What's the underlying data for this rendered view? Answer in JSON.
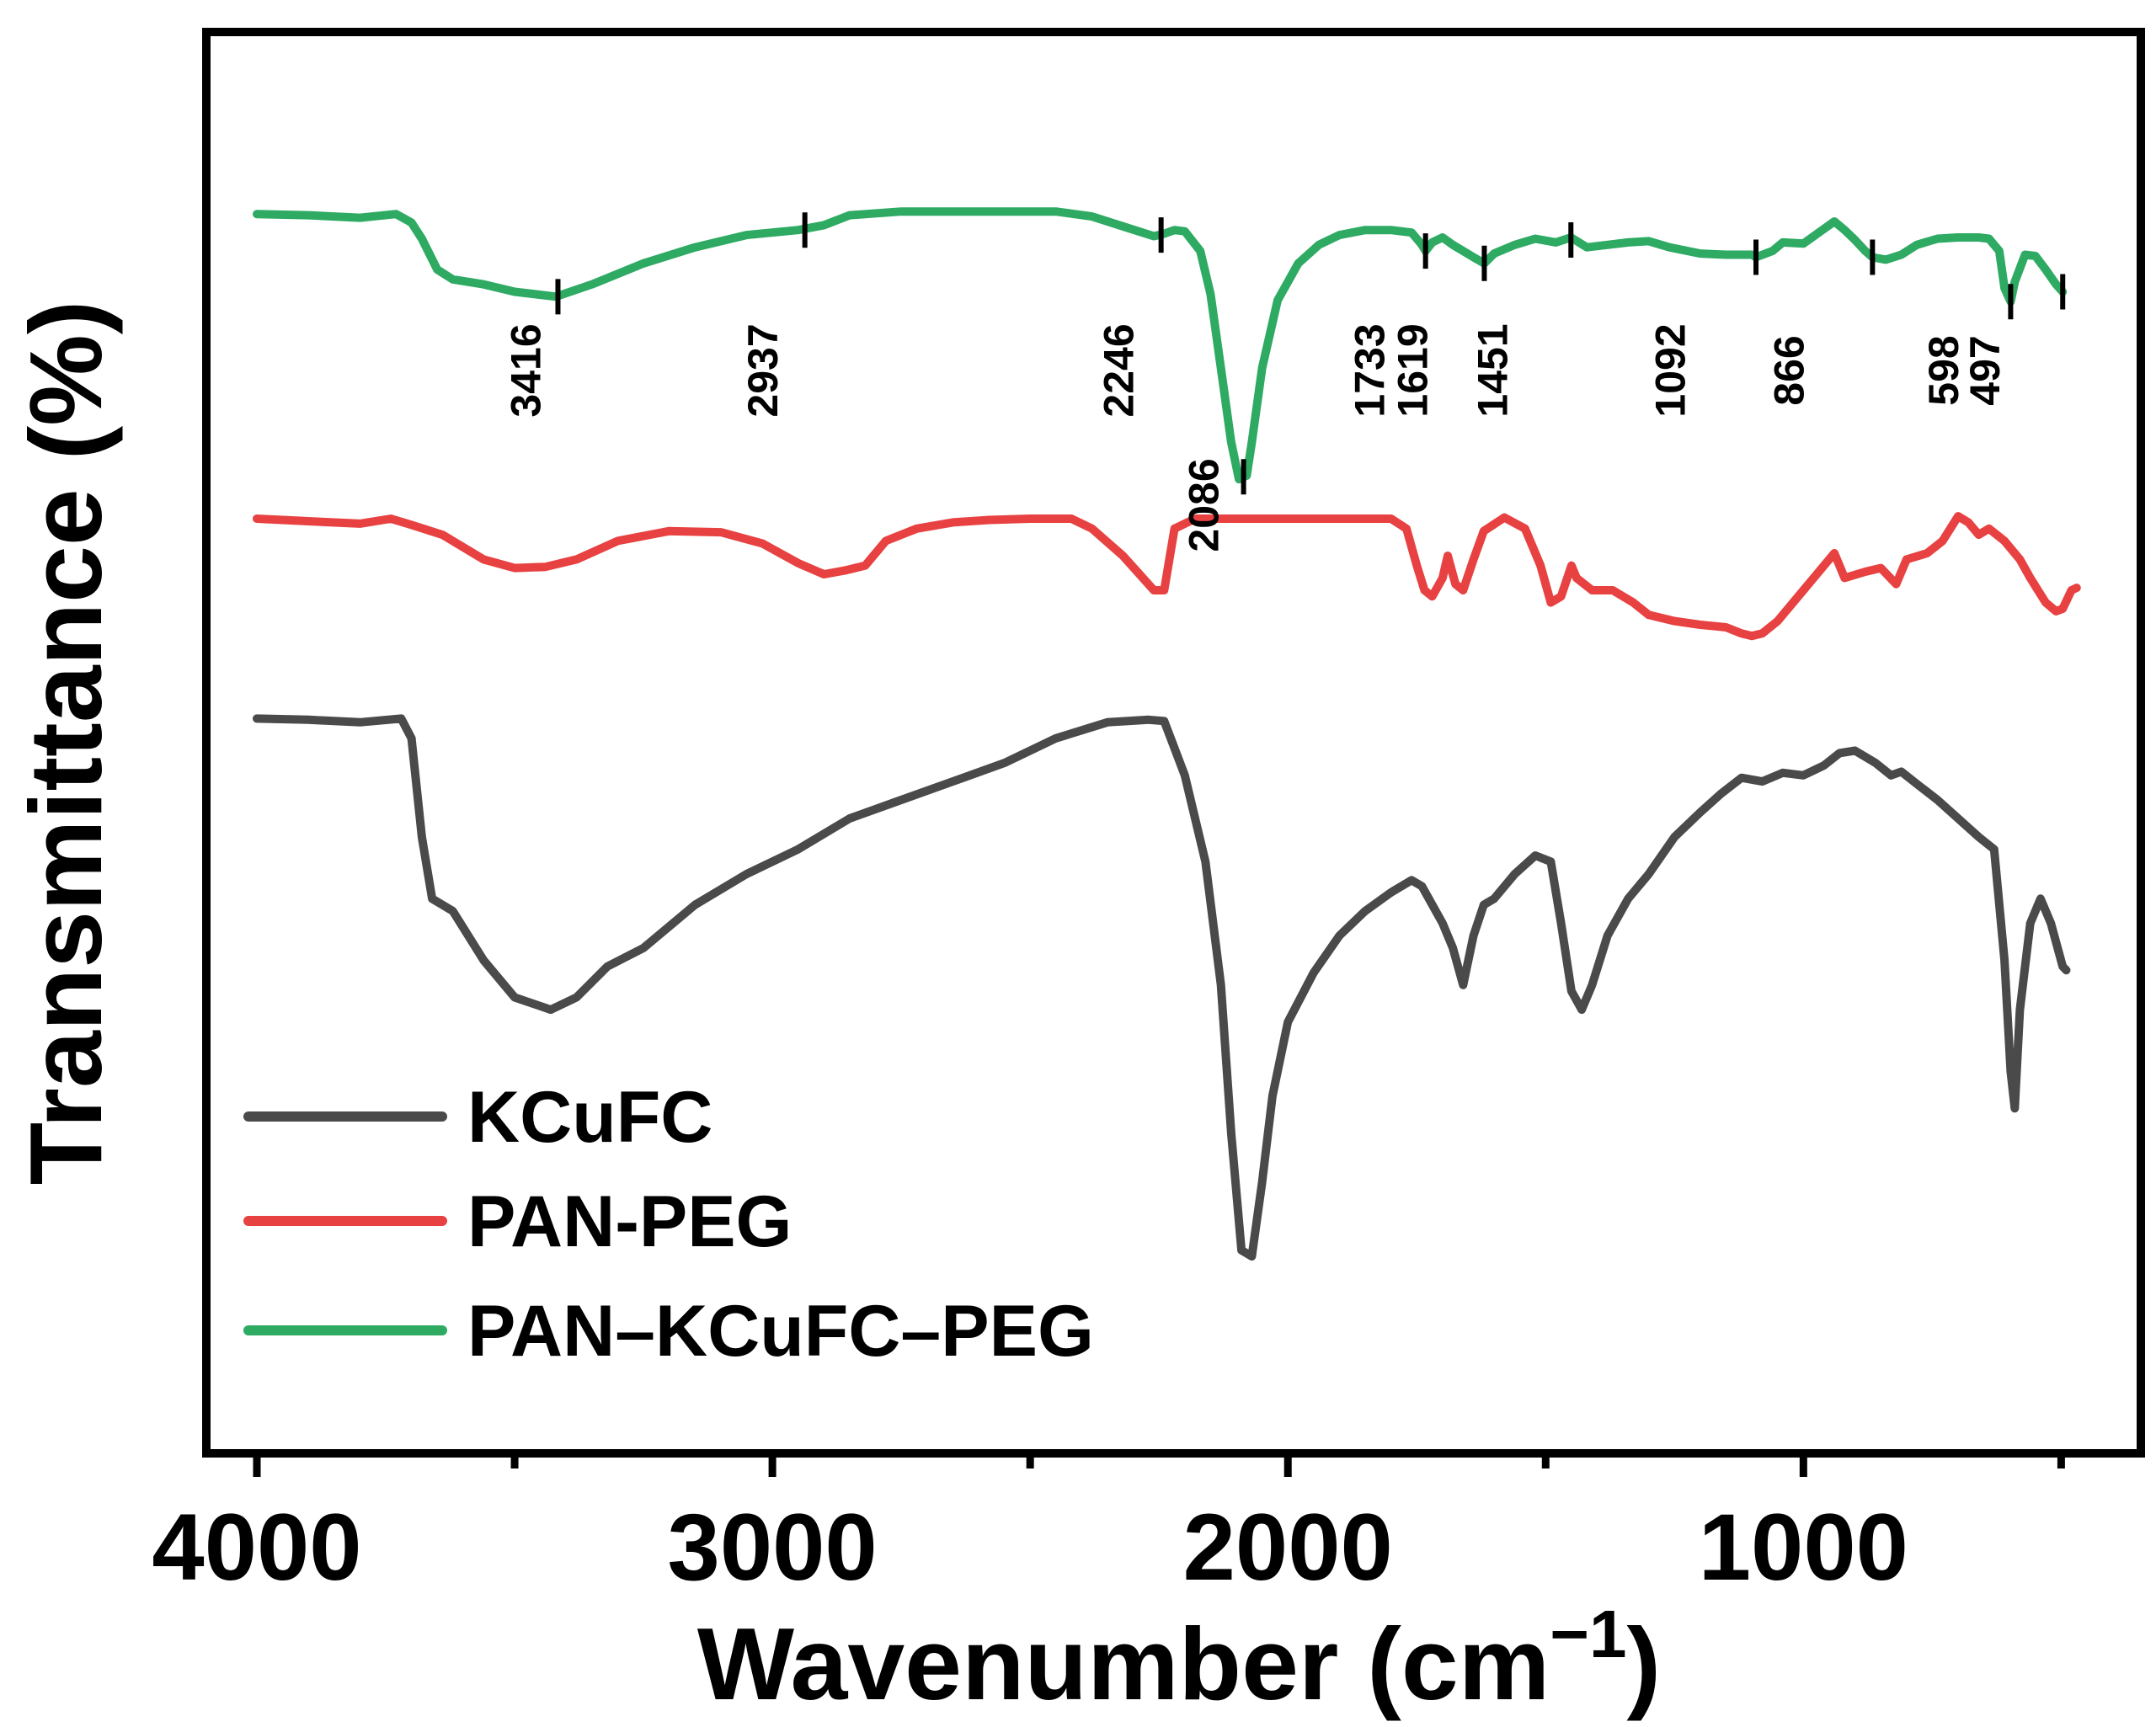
{
  "chart_data": {
    "type": "line",
    "title": "",
    "xlabel": "Wavenumber (cm",
    "xlabel_sup": "−1",
    "xlabel_close": ")",
    "ylabel": "Transmittance (%)",
    "xlim": [
      4000,
      450
    ],
    "ylim": [
      0,
      100
    ],
    "x_reversed": true,
    "y_ticks_shown": false,
    "grid": false,
    "legend_position": "bottom-left",
    "x_ticks": [
      {
        "value": 4000,
        "label": "4000"
      },
      {
        "value": 3000,
        "label": "3000"
      },
      {
        "value": 2000,
        "label": "2000"
      },
      {
        "value": 1000,
        "label": "1000"
      }
    ],
    "x_minor_ticks": [
      3500,
      2500,
      1500,
      500
    ],
    "series": [
      {
        "name": "KCuFC",
        "color": "#4a4a4a",
        "points": [
          [
            4000,
            49.6
          ],
          [
            3900,
            49.5
          ],
          [
            3800,
            49.3
          ],
          [
            3720,
            49.6
          ],
          [
            3700,
            48
          ],
          [
            3680,
            40
          ],
          [
            3660,
            35
          ],
          [
            3620,
            34
          ],
          [
            3560,
            30
          ],
          [
            3500,
            27
          ],
          [
            3430,
            26
          ],
          [
            3380,
            27
          ],
          [
            3320,
            29.5
          ],
          [
            3250,
            31
          ],
          [
            3150,
            34.5
          ],
          [
            3050,
            37
          ],
          [
            2950,
            39
          ],
          [
            2850,
            41.5
          ],
          [
            2750,
            43
          ],
          [
            2650,
            44.5
          ],
          [
            2550,
            46
          ],
          [
            2450,
            48
          ],
          [
            2350,
            49.3
          ],
          [
            2270,
            49.5
          ],
          [
            2240,
            49.4
          ],
          [
            2200,
            45
          ],
          [
            2160,
            38
          ],
          [
            2130,
            28
          ],
          [
            2110,
            16
          ],
          [
            2090,
            6.5
          ],
          [
            2070,
            6
          ],
          [
            2050,
            12
          ],
          [
            2030,
            19
          ],
          [
            2000,
            25
          ],
          [
            1950,
            29
          ],
          [
            1900,
            32
          ],
          [
            1850,
            34
          ],
          [
            1800,
            35.5
          ],
          [
            1760,
            36.5
          ],
          [
            1740,
            36
          ],
          [
            1700,
            33
          ],
          [
            1680,
            31
          ],
          [
            1660,
            28
          ],
          [
            1640,
            32
          ],
          [
            1620,
            34.5
          ],
          [
            1600,
            35
          ],
          [
            1560,
            37
          ],
          [
            1520,
            38.5
          ],
          [
            1490,
            38
          ],
          [
            1470,
            33
          ],
          [
            1450,
            27.5
          ],
          [
            1430,
            26
          ],
          [
            1410,
            28
          ],
          [
            1380,
            32
          ],
          [
            1340,
            35
          ],
          [
            1300,
            37
          ],
          [
            1250,
            40
          ],
          [
            1200,
            42
          ],
          [
            1160,
            43.5
          ],
          [
            1120,
            44.8
          ],
          [
            1080,
            44.5
          ],
          [
            1040,
            45.2
          ],
          [
            1000,
            45
          ],
          [
            960,
            45.8
          ],
          [
            930,
            46.8
          ],
          [
            900,
            47
          ],
          [
            860,
            46
          ],
          [
            830,
            45
          ],
          [
            810,
            45.3
          ],
          [
            780,
            44.3
          ],
          [
            740,
            43
          ],
          [
            700,
            41.5
          ],
          [
            660,
            40
          ],
          [
            630,
            39
          ],
          [
            610,
            30
          ],
          [
            598,
            21
          ],
          [
            590,
            18
          ],
          [
            580,
            26
          ],
          [
            560,
            33
          ],
          [
            540,
            35
          ],
          [
            520,
            33
          ],
          [
            497,
            29.5
          ],
          [
            490,
            29.2
          ]
        ]
      },
      {
        "name": "PAN-PEG",
        "color": "#e84141",
        "points": [
          [
            4000,
            65.8
          ],
          [
            3900,
            65.6
          ],
          [
            3800,
            65.4
          ],
          [
            3740,
            65.8
          ],
          [
            3700,
            65.3
          ],
          [
            3640,
            64.5
          ],
          [
            3560,
            62.5
          ],
          [
            3500,
            61.8
          ],
          [
            3440,
            61.9
          ],
          [
            3380,
            62.5
          ],
          [
            3300,
            64
          ],
          [
            3200,
            64.8
          ],
          [
            3100,
            64.7
          ],
          [
            3020,
            63.8
          ],
          [
            2950,
            62.2
          ],
          [
            2900,
            61.3
          ],
          [
            2860,
            61.6
          ],
          [
            2820,
            62
          ],
          [
            2780,
            64
          ],
          [
            2720,
            65
          ],
          [
            2650,
            65.5
          ],
          [
            2580,
            65.7
          ],
          [
            2500,
            65.8
          ],
          [
            2420,
            65.8
          ],
          [
            2380,
            65
          ],
          [
            2320,
            62.8
          ],
          [
            2260,
            60
          ],
          [
            2240,
            60
          ],
          [
            2220,
            65
          ],
          [
            2180,
            65.8
          ],
          [
            2100,
            65.8
          ],
          [
            2000,
            65.8
          ],
          [
            1900,
            65.8
          ],
          [
            1800,
            65.8
          ],
          [
            1770,
            65
          ],
          [
            1750,
            62
          ],
          [
            1735,
            60
          ],
          [
            1720,
            59.5
          ],
          [
            1700,
            61
          ],
          [
            1690,
            62.8
          ],
          [
            1675,
            60.5
          ],
          [
            1660,
            60
          ],
          [
            1640,
            62.5
          ],
          [
            1620,
            64.8
          ],
          [
            1580,
            65.9
          ],
          [
            1540,
            65
          ],
          [
            1510,
            62
          ],
          [
            1490,
            59
          ],
          [
            1470,
            59.5
          ],
          [
            1450,
            62
          ],
          [
            1440,
            61
          ],
          [
            1410,
            60
          ],
          [
            1370,
            60
          ],
          [
            1330,
            59
          ],
          [
            1300,
            58
          ],
          [
            1250,
            57.5
          ],
          [
            1200,
            57.2
          ],
          [
            1150,
            57
          ],
          [
            1120,
            56.5
          ],
          [
            1100,
            56.3
          ],
          [
            1080,
            56.5
          ],
          [
            1050,
            57.5
          ],
          [
            1000,
            60
          ],
          [
            960,
            62
          ],
          [
            940,
            63
          ],
          [
            920,
            61
          ],
          [
            880,
            61.5
          ],
          [
            850,
            61.8
          ],
          [
            820,
            60.5
          ],
          [
            800,
            62.5
          ],
          [
            760,
            63
          ],
          [
            730,
            64
          ],
          [
            700,
            66
          ],
          [
            680,
            65.5
          ],
          [
            660,
            64.5
          ],
          [
            640,
            65
          ],
          [
            610,
            64
          ],
          [
            580,
            62.5
          ],
          [
            560,
            61
          ],
          [
            530,
            59
          ],
          [
            510,
            58.3
          ],
          [
            497,
            58.5
          ],
          [
            480,
            60
          ],
          [
            470,
            60.2
          ]
        ]
      },
      {
        "name": "PAN–KCuFC–PEG",
        "color": "#2eaa63",
        "points": [
          [
            4000,
            90.5
          ],
          [
            3900,
            90.4
          ],
          [
            3800,
            90.2
          ],
          [
            3730,
            90.5
          ],
          [
            3700,
            89.8
          ],
          [
            3680,
            88.5
          ],
          [
            3650,
            86
          ],
          [
            3620,
            85.2
          ],
          [
            3560,
            84.8
          ],
          [
            3500,
            84.2
          ],
          [
            3420,
            83.8
          ],
          [
            3350,
            84.8
          ],
          [
            3250,
            86.5
          ],
          [
            3150,
            87.8
          ],
          [
            3050,
            88.8
          ],
          [
            2950,
            89.2
          ],
          [
            2900,
            89.6
          ],
          [
            2850,
            90.4
          ],
          [
            2750,
            90.7
          ],
          [
            2650,
            90.7
          ],
          [
            2550,
            90.7
          ],
          [
            2450,
            90.7
          ],
          [
            2380,
            90.3
          ],
          [
            2320,
            89.5
          ],
          [
            2260,
            88.7
          ],
          [
            2240,
            88.9
          ],
          [
            2220,
            89.2
          ],
          [
            2200,
            89.1
          ],
          [
            2170,
            87.5
          ],
          [
            2150,
            84
          ],
          [
            2130,
            78
          ],
          [
            2110,
            72
          ],
          [
            2095,
            69
          ],
          [
            2080,
            69.3
          ],
          [
            2070,
            72
          ],
          [
            2050,
            78
          ],
          [
            2020,
            83.5
          ],
          [
            1980,
            86.5
          ],
          [
            1940,
            88
          ],
          [
            1900,
            88.8
          ],
          [
            1850,
            89.2
          ],
          [
            1800,
            89.2
          ],
          [
            1760,
            89
          ],
          [
            1740,
            88
          ],
          [
            1733,
            87.5
          ],
          [
            1720,
            88.2
          ],
          [
            1700,
            88.6
          ],
          [
            1680,
            88
          ],
          [
            1660,
            87.5
          ],
          [
            1640,
            87
          ],
          [
            1619,
            86.5
          ],
          [
            1600,
            87.3
          ],
          [
            1560,
            88
          ],
          [
            1520,
            88.5
          ],
          [
            1480,
            88.2
          ],
          [
            1451,
            88.6
          ],
          [
            1420,
            87.8
          ],
          [
            1380,
            88
          ],
          [
            1340,
            88.2
          ],
          [
            1300,
            88.3
          ],
          [
            1260,
            87.8
          ],
          [
            1200,
            87.3
          ],
          [
            1150,
            87.2
          ],
          [
            1100,
            87.2
          ],
          [
            1092,
            87
          ],
          [
            1060,
            87.5
          ],
          [
            1040,
            88.2
          ],
          [
            1000,
            88.1
          ],
          [
            960,
            89.3
          ],
          [
            940,
            89.9
          ],
          [
            920,
            89.2
          ],
          [
            900,
            88.4
          ],
          [
            880,
            87.5
          ],
          [
            866,
            87
          ],
          [
            840,
            86.8
          ],
          [
            810,
            87.2
          ],
          [
            780,
            88
          ],
          [
            740,
            88.5
          ],
          [
            700,
            88.6
          ],
          [
            660,
            88.6
          ],
          [
            640,
            88.5
          ],
          [
            620,
            87.5
          ],
          [
            610,
            84.5
          ],
          [
            598,
            83.4
          ],
          [
            590,
            85
          ],
          [
            570,
            87.2
          ],
          [
            550,
            87.1
          ],
          [
            530,
            86
          ],
          [
            510,
            84.8
          ],
          [
            497,
            84.2
          ]
        ]
      }
    ],
    "annotations": [
      {
        "label": "3416",
        "x": 3416,
        "y": 83.8,
        "label_x": 3450
      },
      {
        "label": "2937",
        "x": 2937,
        "y": 89.2,
        "label_x": 2990
      },
      {
        "label": "2246",
        "x": 2246,
        "y": 88.8,
        "label_x": 2300
      },
      {
        "label": "2086",
        "x": 2086,
        "y": 69.2,
        "label_x": 2135
      },
      {
        "label": "1733",
        "x": 1733,
        "y": 87.5,
        "label_x": 1813
      },
      {
        "label": "1619",
        "x": 1619,
        "y": 86.5,
        "label_x": 1730
      },
      {
        "label": "1451",
        "x": 1451,
        "y": 88.4,
        "label_x": 1575
      },
      {
        "label": "1092",
        "x": 1092,
        "y": 87.0,
        "label_x": 1230
      },
      {
        "label": "866",
        "x": 866,
        "y": 87.0,
        "label_x": 1000
      },
      {
        "label": "598",
        "x": 598,
        "y": 83.4,
        "label_x": 700
      },
      {
        "label": "497",
        "x": 497,
        "y": 84.2,
        "label_x": 620
      }
    ]
  }
}
